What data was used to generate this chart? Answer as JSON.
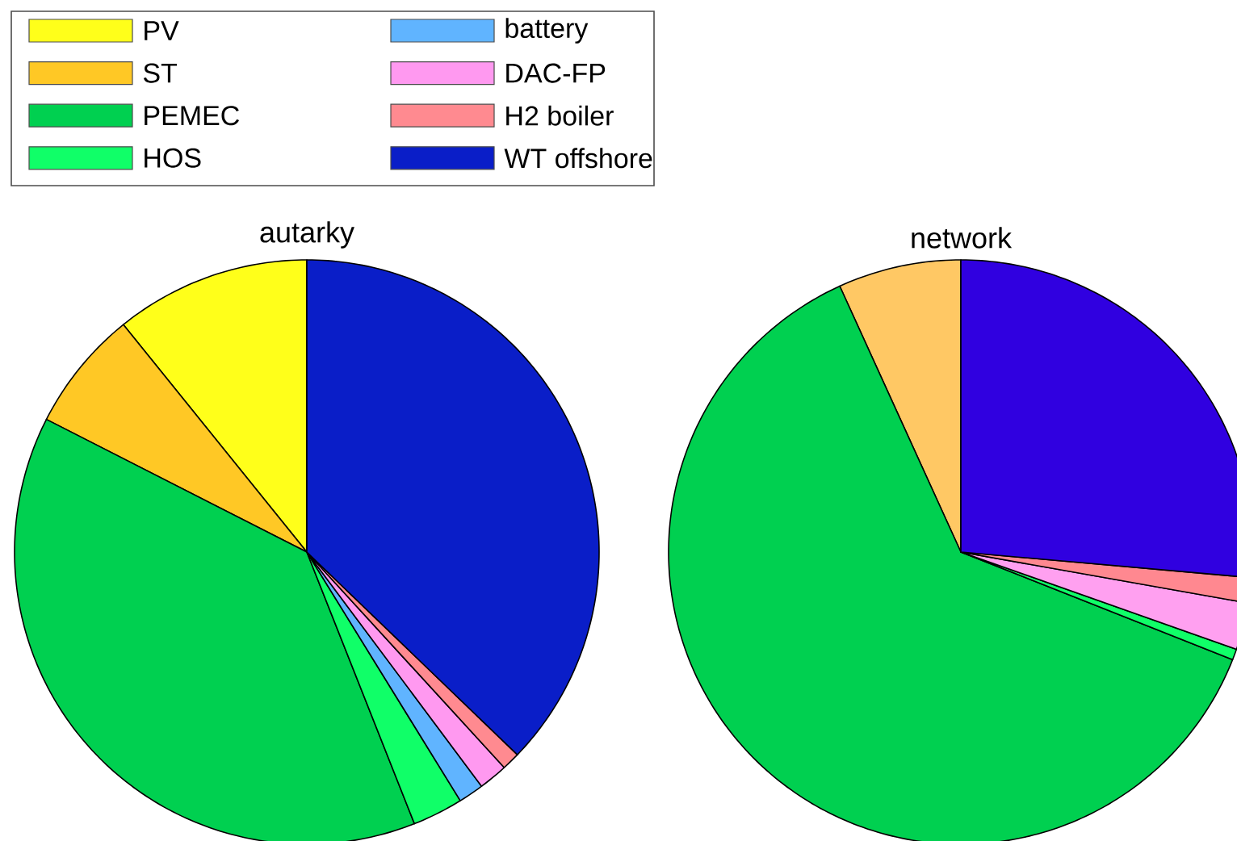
{
  "chart_data": [
    {
      "type": "pie",
      "title": "autarky",
      "legend": "top",
      "categories": [
        "PV",
        "ST",
        "PEMEC",
        "HOS",
        "battery",
        "DAC-FP",
        "H2 boiler",
        "WT offshore"
      ],
      "values": [
        10.8,
        6.7,
        38.5,
        2.8,
        1.4,
        1.6,
        1.0,
        37.2
      ],
      "colors": [
        "#ffff1a",
        "#ffc825",
        "#00d050",
        "#10ff68",
        "#60b4ff",
        "#ff99f0",
        "#ff8a90",
        "#0a1ec8"
      ]
    },
    {
      "type": "pie",
      "title": "network",
      "categories": [
        null,
        null,
        null,
        null,
        null,
        null,
        null,
        null
      ],
      "values": [
        0,
        6.8,
        62.2,
        0.6,
        0,
        2.6,
        1.4,
        26.4
      ],
      "colors": [
        "#ffff1a",
        "#ffc864",
        "#00d050",
        "#10ff68",
        "#60b4ff",
        "#ffa0f0",
        "#ff8890",
        "#3000e0"
      ]
    }
  ]
}
